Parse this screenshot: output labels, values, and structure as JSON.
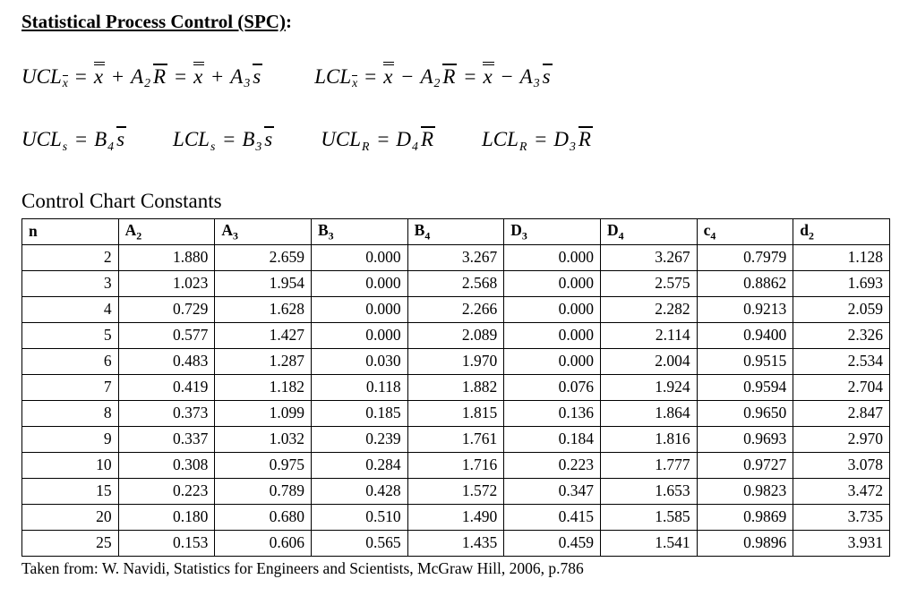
{
  "title": {
    "text": "Statistical Process Control (SPC)",
    "colon": ":"
  },
  "formulas": {
    "ucl_xbar": [
      [
        "UCL",
        "v"
      ],
      [
        "x",
        "subol"
      ],
      [
        "=",
        "op"
      ],
      [
        "x",
        "dol"
      ],
      [
        "+",
        "op"
      ],
      [
        "A",
        "v"
      ],
      [
        "2",
        "sub"
      ],
      [
        "R",
        "ol"
      ],
      [
        "=",
        "op"
      ],
      [
        "x",
        "dol"
      ],
      [
        "+",
        "op"
      ],
      [
        "A",
        "v"
      ],
      [
        "3",
        "sub"
      ],
      [
        "s",
        "ol"
      ]
    ],
    "lcl_xbar": [
      [
        "LCL",
        "v"
      ],
      [
        "x",
        "subol"
      ],
      [
        "=",
        "op"
      ],
      [
        "x",
        "dol"
      ],
      [
        "−",
        "op"
      ],
      [
        "A",
        "v"
      ],
      [
        "2",
        "sub"
      ],
      [
        "R",
        "ol"
      ],
      [
        "=",
        "op"
      ],
      [
        "x",
        "dol"
      ],
      [
        "−",
        "op"
      ],
      [
        "A",
        "v"
      ],
      [
        "3",
        "sub"
      ],
      [
        "s",
        "ol"
      ]
    ],
    "ucl_s": [
      [
        "UCL",
        "v"
      ],
      [
        "s",
        "sub"
      ],
      [
        "=",
        "op"
      ],
      [
        "B",
        "v"
      ],
      [
        "4",
        "sub"
      ],
      [
        "s",
        "ol"
      ]
    ],
    "lcl_s": [
      [
        "LCL",
        "v"
      ],
      [
        "s",
        "sub"
      ],
      [
        "=",
        "op"
      ],
      [
        "B",
        "v"
      ],
      [
        "3",
        "sub"
      ],
      [
        "s",
        "ol"
      ]
    ],
    "ucl_R": [
      [
        "UCL",
        "v"
      ],
      [
        "R",
        "sub"
      ],
      [
        "=",
        "op"
      ],
      [
        "D",
        "v"
      ],
      [
        "4",
        "sub"
      ],
      [
        "R",
        "ol"
      ]
    ],
    "lcl_R": [
      [
        "LCL",
        "v"
      ],
      [
        "R",
        "sub"
      ],
      [
        "=",
        "op"
      ],
      [
        "D",
        "v"
      ],
      [
        "3",
        "sub"
      ],
      [
        "R",
        "ol"
      ]
    ]
  },
  "table_heading": "Control Chart Constants",
  "table": {
    "headers": [
      {
        "b": "n",
        "s": ""
      },
      {
        "b": "A",
        "s": "2"
      },
      {
        "b": "A",
        "s": "3"
      },
      {
        "b": "B",
        "s": "3"
      },
      {
        "b": "B",
        "s": "4"
      },
      {
        "b": "D",
        "s": "3"
      },
      {
        "b": "D",
        "s": "4"
      },
      {
        "b": "c",
        "s": "4"
      },
      {
        "b": "d",
        "s": "2"
      }
    ],
    "rows": [
      [
        "2",
        "1.880",
        "2.659",
        "0.000",
        "3.267",
        "0.000",
        "3.267",
        "0.7979",
        "1.128"
      ],
      [
        "3",
        "1.023",
        "1.954",
        "0.000",
        "2.568",
        "0.000",
        "2.575",
        "0.8862",
        "1.693"
      ],
      [
        "4",
        "0.729",
        "1.628",
        "0.000",
        "2.266",
        "0.000",
        "2.282",
        "0.9213",
        "2.059"
      ],
      [
        "5",
        "0.577",
        "1.427",
        "0.000",
        "2.089",
        "0.000",
        "2.114",
        "0.9400",
        "2.326"
      ],
      [
        "6",
        "0.483",
        "1.287",
        "0.030",
        "1.970",
        "0.000",
        "2.004",
        "0.9515",
        "2.534"
      ],
      [
        "7",
        "0.419",
        "1.182",
        "0.118",
        "1.882",
        "0.076",
        "1.924",
        "0.9594",
        "2.704"
      ],
      [
        "8",
        "0.373",
        "1.099",
        "0.185",
        "1.815",
        "0.136",
        "1.864",
        "0.9650",
        "2.847"
      ],
      [
        "9",
        "0.337",
        "1.032",
        "0.239",
        "1.761",
        "0.184",
        "1.816",
        "0.9693",
        "2.970"
      ],
      [
        "10",
        "0.308",
        "0.975",
        "0.284",
        "1.716",
        "0.223",
        "1.777",
        "0.9727",
        "3.078"
      ],
      [
        "15",
        "0.223",
        "0.789",
        "0.428",
        "1.572",
        "0.347",
        "1.653",
        "0.9823",
        "3.472"
      ],
      [
        "20",
        "0.180",
        "0.680",
        "0.510",
        "1.490",
        "0.415",
        "1.585",
        "0.9869",
        "3.735"
      ],
      [
        "25",
        "0.153",
        "0.606",
        "0.565",
        "1.435",
        "0.459",
        "1.541",
        "0.9896",
        "3.931"
      ]
    ]
  },
  "footer": "Taken from: W. Navidi, Statistics for Engineers and Scientists, McGraw Hill, 2006, p.786"
}
